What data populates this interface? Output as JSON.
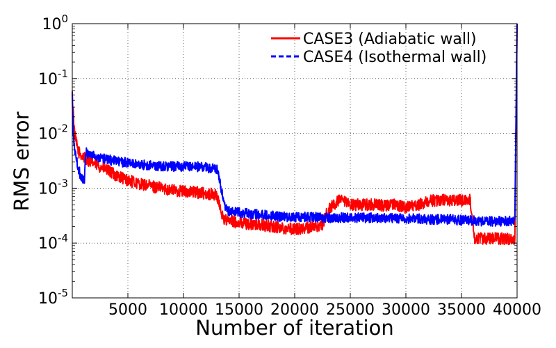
{
  "chart_data": {
    "type": "line",
    "title": "",
    "xlabel": "Number of iteration",
    "ylabel": "RMS error",
    "xlim": [
      0,
      40000
    ],
    "ylim": [
      1e-05,
      1
    ],
    "yscale": "log",
    "grid": true,
    "legend_position": "top-right",
    "x_ticks": [
      "5000",
      "10000",
      "15000",
      "20000",
      "25000",
      "30000",
      "35000",
      "40000"
    ],
    "y_ticks": [
      {
        "base": "10",
        "exp": "-5"
      },
      {
        "base": "10",
        "exp": "-4"
      },
      {
        "base": "10",
        "exp": "-3"
      },
      {
        "base": "10",
        "exp": "-2"
      },
      {
        "base": "10",
        "exp": "-1"
      },
      {
        "base": "10",
        "exp": "0"
      }
    ],
    "series": [
      {
        "name": "CASE3 (Adiabatic wall)",
        "color": "#ff0000",
        "dash": "solid",
        "x": [
          0,
          200,
          400,
          600,
          800,
          1000,
          1200,
          1500,
          2000,
          3000,
          4000,
          5000,
          6000,
          7000,
          8000,
          9000,
          10000,
          11000,
          12000,
          13000,
          13200,
          13600,
          14000,
          15000,
          16000,
          17000,
          18000,
          19000,
          20000,
          21000,
          22000,
          22500,
          23000,
          24000,
          25000,
          26000,
          27000,
          28000,
          29000,
          30000,
          31000,
          32000,
          33000,
          34000,
          35000,
          35800,
          36200,
          37000,
          38000,
          39000,
          39800,
          40000
        ],
        "y": [
          0.05,
          0.01,
          0.006,
          0.0045,
          0.004,
          0.0037,
          0.0035,
          0.0032,
          0.0028,
          0.0022,
          0.0017,
          0.0014,
          0.0012,
          0.0011,
          0.001,
          0.00093,
          0.00088,
          0.00085,
          0.0008,
          0.00075,
          0.0005,
          0.00028,
          0.00025,
          0.00024,
          0.00022,
          0.00021,
          0.0002,
          0.00019,
          0.00018,
          0.00019,
          0.0002,
          0.00022,
          0.0004,
          0.0006,
          0.0005,
          0.0005,
          0.0005,
          0.00048,
          0.0005,
          0.00045,
          0.00048,
          0.0006,
          0.0006,
          0.0006,
          0.0006,
          0.0006,
          0.00012,
          0.00012,
          0.00012,
          0.00012,
          0.00012,
          1.0
        ]
      },
      {
        "name": "CASE4 (Isothermal wall)",
        "color": "#0000ff",
        "dash": "dashed",
        "x": [
          0,
          100,
          300,
          500,
          700,
          900,
          1100,
          1200,
          1400,
          2000,
          3000,
          4000,
          5000,
          6000,
          7000,
          8000,
          9000,
          10000,
          11000,
          12000,
          13000,
          13300,
          13700,
          14000,
          15000,
          16000,
          17000,
          18000,
          19000,
          20000,
          21000,
          22000,
          23000,
          24000,
          25000,
          26000,
          27000,
          28000,
          29000,
          30000,
          31000,
          32000,
          33000,
          34000,
          35000,
          36000,
          37000,
          38000,
          39000,
          39800,
          40000
        ],
        "y": [
          0.05,
          0.008,
          0.004,
          0.0025,
          0.0018,
          0.0015,
          0.0013,
          0.0045,
          0.0043,
          0.0039,
          0.0034,
          0.0031,
          0.0029,
          0.0027,
          0.0026,
          0.0025,
          0.0025,
          0.0025,
          0.0025,
          0.0024,
          0.0022,
          0.0012,
          0.00045,
          0.00038,
          0.00036,
          0.00034,
          0.00033,
          0.00032,
          0.0003,
          0.0003,
          0.0003,
          0.0003,
          0.00029,
          0.00029,
          0.00029,
          0.00029,
          0.00029,
          0.00028,
          0.00028,
          0.00028,
          0.00028,
          0.00027,
          0.00027,
          0.00027,
          0.00026,
          0.00026,
          0.00025,
          0.00025,
          0.00025,
          0.00026,
          1.0
        ]
      }
    ]
  }
}
